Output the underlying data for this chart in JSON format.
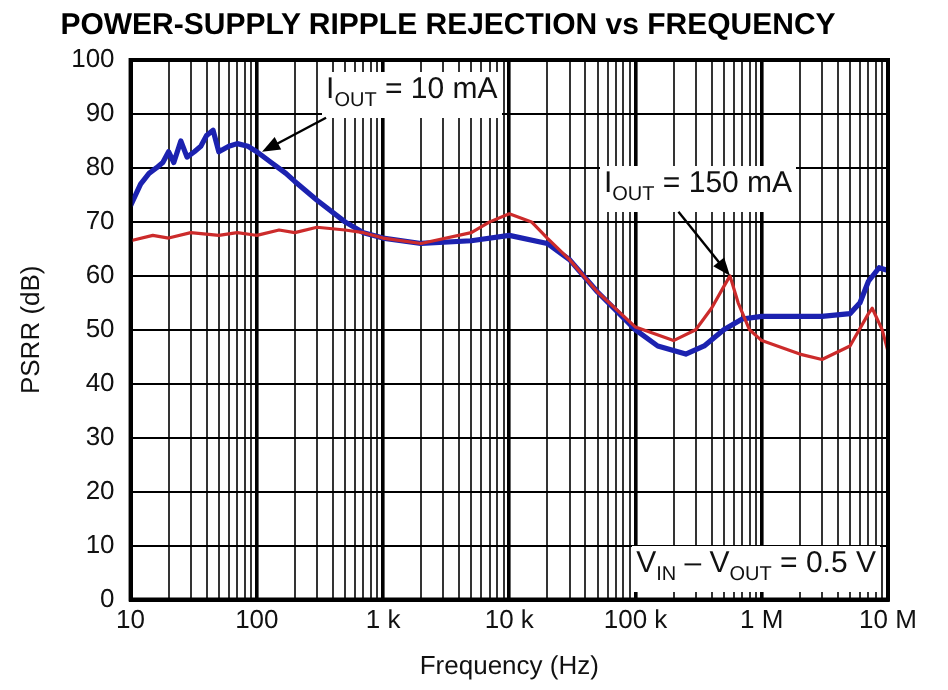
{
  "chart_data": {
    "type": "line",
    "title": "POWER-SUPPLY RIPPLE REJECTION vs FREQUENCY",
    "xlabel": "Frequency (Hz)",
    "ylabel": "PSRR (dB)",
    "log": "x",
    "grid": true,
    "legend": false,
    "marker": "none",
    "line_style": "solid",
    "xlim": [
      10,
      10000000
    ],
    "xticks": [
      {
        "value": 10,
        "label": "10"
      },
      {
        "value": 20,
        "label": null
      },
      {
        "value": 30,
        "label": null
      },
      {
        "value": 40,
        "label": null
      },
      {
        "value": 50,
        "label": null
      },
      {
        "value": 60,
        "label": null
      },
      {
        "value": 70,
        "label": null
      },
      {
        "value": 80,
        "label": null
      },
      {
        "value": 90,
        "label": null
      },
      {
        "value": 100,
        "label": "100"
      },
      {
        "value": 200,
        "label": null
      },
      {
        "value": 300,
        "label": null
      },
      {
        "value": 400,
        "label": null
      },
      {
        "value": 500,
        "label": null
      },
      {
        "value": 600,
        "label": null
      },
      {
        "value": 700,
        "label": null
      },
      {
        "value": 800,
        "label": null
      },
      {
        "value": 900,
        "label": null
      },
      {
        "value": 1000,
        "label": "1 k"
      },
      {
        "value": 2000,
        "label": null
      },
      {
        "value": 3000,
        "label": null
      },
      {
        "value": 4000,
        "label": null
      },
      {
        "value": 5000,
        "label": null
      },
      {
        "value": 6000,
        "label": null
      },
      {
        "value": 7000,
        "label": null
      },
      {
        "value": 8000,
        "label": null
      },
      {
        "value": 9000,
        "label": null
      },
      {
        "value": 10000,
        "label": "10 k"
      },
      {
        "value": 20000,
        "label": null
      },
      {
        "value": 30000,
        "label": null
      },
      {
        "value": 40000,
        "label": null
      },
      {
        "value": 50000,
        "label": null
      },
      {
        "value": 60000,
        "label": null
      },
      {
        "value": 70000,
        "label": null
      },
      {
        "value": 80000,
        "label": null
      },
      {
        "value": 90000,
        "label": null
      },
      {
        "value": 100000,
        "label": "100 k"
      },
      {
        "value": 200000,
        "label": null
      },
      {
        "value": 300000,
        "label": null
      },
      {
        "value": 400000,
        "label": null
      },
      {
        "value": 500000,
        "label": null
      },
      {
        "value": 600000,
        "label": null
      },
      {
        "value": 700000,
        "label": null
      },
      {
        "value": 800000,
        "label": null
      },
      {
        "value": 900000,
        "label": null
      },
      {
        "value": 1000000,
        "label": "1 M"
      },
      {
        "value": 2000000,
        "label": null
      },
      {
        "value": 3000000,
        "label": null
      },
      {
        "value": 4000000,
        "label": null
      },
      {
        "value": 5000000,
        "label": null
      },
      {
        "value": 6000000,
        "label": null
      },
      {
        "value": 7000000,
        "label": null
      },
      {
        "value": 8000000,
        "label": null
      },
      {
        "value": 9000000,
        "label": null
      },
      {
        "value": 10000000,
        "label": "10 M"
      }
    ],
    "ylim": [
      0,
      100
    ],
    "yticks": [
      0,
      10,
      20,
      30,
      40,
      50,
      60,
      70,
      80,
      90,
      100
    ],
    "series": [
      {
        "color": "#cc2b2b",
        "x": [
          10,
          15,
          20,
          30,
          50,
          70,
          100,
          150,
          200,
          300,
          500,
          700,
          1000,
          2000,
          5000,
          7000,
          10000,
          15000,
          20000,
          30000,
          50000,
          100000,
          200000,
          300000,
          400000,
          500000,
          560000,
          650000,
          800000,
          1000000,
          2000000,
          3000000,
          5000000,
          7000000,
          7500000,
          9000000,
          10000000
        ],
        "values": [
          66.5,
          67.5,
          67,
          68,
          67.5,
          68,
          67.5,
          68.5,
          68,
          69,
          68.5,
          68,
          67,
          66,
          68,
          70,
          71.5,
          70,
          67,
          63,
          57,
          50.5,
          48,
          50,
          54,
          58,
          60,
          55,
          50,
          48,
          45.5,
          44.5,
          47,
          53,
          54,
          50,
          46
        ]
      },
      {
        "color": "#1c22b0",
        "x": [
          10,
          12,
          14,
          16,
          18,
          20,
          22,
          25,
          28,
          32,
          36,
          40,
          45,
          50,
          60,
          70,
          85,
          100,
          130,
          170,
          200,
          300,
          500,
          700,
          1000,
          2000,
          5000,
          10000,
          20000,
          30000,
          50000,
          100000,
          150000,
          250000,
          350000,
          500000,
          700000,
          1000000,
          3000000,
          5000000,
          6000000,
          7000000,
          8500000,
          10000000
        ],
        "values": [
          73,
          77,
          79,
          80,
          81,
          83,
          81,
          85,
          82,
          83,
          84,
          86,
          87,
          83,
          84,
          84.5,
          84,
          83,
          81,
          79,
          77.5,
          74,
          70,
          68,
          67,
          66,
          66.5,
          67.5,
          66,
          63,
          57,
          50,
          47,
          45.5,
          47,
          50,
          52,
          52.5,
          52.5,
          53,
          55,
          59,
          61.5,
          61
        ]
      }
    ],
    "annotations": [
      {
        "text": "I$_{OUT}$ = 10 mA",
        "x": 110,
        "y": 83
      },
      {
        "text": "I$_{OUT}$ = 150 mA",
        "x": 560000,
        "y": 60
      },
      "V$_{IN}$ – V$_{OUT}$ = 0.5 V"
    ]
  }
}
